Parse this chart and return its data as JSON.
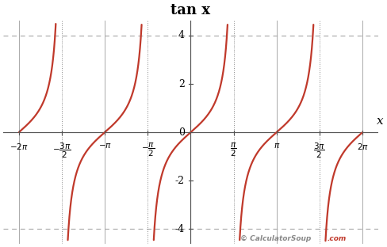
{
  "title": "tan x",
  "xlim": [
    -6.85,
    6.85
  ],
  "ylim": [
    -4.6,
    4.6
  ],
  "yticks": [
    -4,
    -2,
    0,
    2,
    4
  ],
  "curve_color": "#c0392b",
  "curve_linewidth": 1.6,
  "asymptote_color": "#888888",
  "asymptote_linewidth": 0.7,
  "axis_color": "#555555",
  "grid_color_solid": "#aaaaaa",
  "grid_color_dashed": "#aaaaaa",
  "background_color": "#ffffff",
  "xlabel": "x",
  "watermark_main": "© CalculatorSoup",
  "watermark_dot_com": ".com",
  "watermark_color_main": "#888888",
  "watermark_color_com": "#c0392b",
  "title_fontsize": 13,
  "tick_fontsize": 9,
  "xlabel_fontsize": 11
}
